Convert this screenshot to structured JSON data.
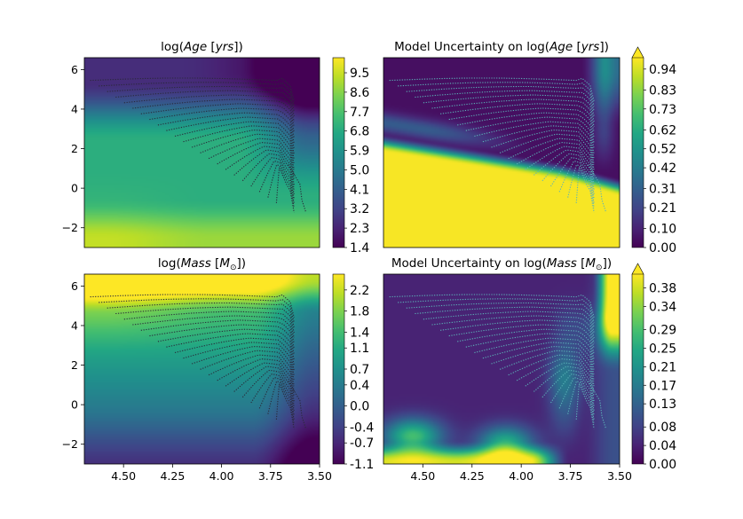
{
  "chart_data": [
    {
      "type": "heatmap",
      "title": "log(Age [yrs])",
      "title_parts": {
        "pre": "log(",
        "it": "Age",
        "br": " [",
        "it2": "yrs",
        "post": "])"
      },
      "xlim": [
        4.7,
        3.5
      ],
      "ylim": [
        -3,
        6.6
      ],
      "yticks": [
        "−2",
        "0",
        "2",
        "4",
        "6"
      ],
      "xticks": [],
      "colormap": "viridis",
      "colorbar_ticks": [
        "1.4",
        "2.3",
        "3.2",
        "4.1",
        "5.0",
        "5.9",
        "6.8",
        "7.7",
        "8.6",
        "9.5"
      ],
      "colorbar_range": [
        1.4,
        10.2
      ],
      "colorbar_extend": "none",
      "field": "age"
    },
    {
      "type": "heatmap",
      "title": "Model Uncertainty on log(Age [yrs])",
      "title_parts": {
        "pre": "Model Uncertainty on log(",
        "it": "Age",
        "br": " [",
        "it2": "yrs",
        "post": "])"
      },
      "xlim": [
        4.7,
        3.5
      ],
      "ylim": [
        -3,
        6.6
      ],
      "yticks": [],
      "xticks": [],
      "colormap": "viridis",
      "colorbar_ticks": [
        "0.00",
        "0.10",
        "0.21",
        "0.31",
        "0.42",
        "0.52",
        "0.62",
        "0.73",
        "0.83",
        "0.94"
      ],
      "colorbar_range": [
        0.0,
        1.0
      ],
      "colorbar_extend": "max",
      "field": "age_unc"
    },
    {
      "type": "heatmap",
      "title": "log(Mass [M⊙])",
      "title_parts": {
        "pre": "log(",
        "it": "Mass",
        "br": " [",
        "it2": "M",
        "sub": "⊙",
        "post": "])"
      },
      "xlim": [
        4.7,
        3.5
      ],
      "ylim": [
        -3,
        6.6
      ],
      "yticks": [
        "−2",
        "0",
        "2",
        "4",
        "6"
      ],
      "xticks": [
        "4.50",
        "4.25",
        "4.00",
        "3.75",
        "3.50"
      ],
      "colormap": "viridis",
      "colorbar_ticks": [
        "-1.1",
        "-0.7",
        "-0.4",
        "0.0",
        "0.4",
        "0.7",
        "1.1",
        "1.4",
        "1.8",
        "2.2"
      ],
      "colorbar_range": [
        -1.1,
        2.5
      ],
      "colorbar_extend": "none",
      "field": "mass"
    },
    {
      "type": "heatmap",
      "title": "Model Uncertainty on log(Mass [M⊙])",
      "title_parts": {
        "pre": "Model Uncertainty on log(",
        "it": "Mass",
        "br": " [",
        "it2": "M",
        "sub": "⊙",
        "post": "])"
      },
      "xlim": [
        4.7,
        3.5
      ],
      "ylim": [
        -3,
        6.6
      ],
      "yticks": [],
      "xticks": [
        "4.50",
        "4.25",
        "4.00",
        "3.75",
        "3.50"
      ],
      "colormap": "viridis",
      "colorbar_ticks": [
        "0.00",
        "0.04",
        "0.08",
        "0.13",
        "0.17",
        "0.21",
        "0.25",
        "0.29",
        "0.34",
        "0.38"
      ],
      "colorbar_range": [
        0.0,
        0.41
      ],
      "colorbar_extend": "max",
      "field": "mass_unc"
    }
  ],
  "tracks": {
    "description_units": "x = log(Teff), y = log(L)",
    "zams_x": [
      4.67,
      4.6,
      4.52,
      4.44,
      4.36,
      4.28,
      4.2,
      4.12,
      4.05,
      3.99,
      3.93,
      3.88,
      3.84,
      3.8,
      3.77,
      3.74,
      3.72
    ],
    "zams_y": [
      5.45,
      5.05,
      4.62,
      4.18,
      3.72,
      3.27,
      2.85,
      2.42,
      2.02,
      1.65,
      1.28,
      0.92,
      0.6,
      0.3,
      0.0,
      -0.35,
      -0.75
    ],
    "rgb_x": 3.63,
    "top_y": [
      5.45,
      5.25,
      5.05,
      4.84,
      4.62,
      4.4,
      4.18,
      3.95,
      3.72,
      3.5,
      3.27,
      3.06,
      2.85,
      2.64,
      2.42,
      2.22,
      2.02,
      1.84,
      1.65,
      1.46,
      1.28,
      1.1,
      0.92
    ],
    "tail": {
      "x": [
        3.66,
        3.6,
        3.59,
        3.57
      ],
      "y": [
        1.2,
        0.2,
        -0.6,
        -1.2
      ]
    }
  },
  "colors": {
    "track_dark": "#2a2a3a",
    "track_light": "#5bb3b8",
    "axis": "#000000"
  }
}
